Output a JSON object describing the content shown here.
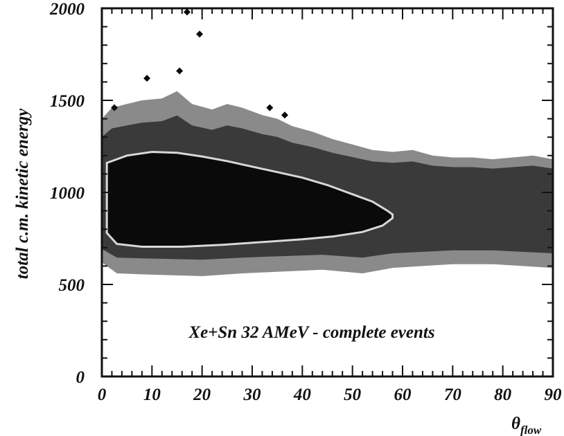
{
  "chart_data": {
    "type": "heatmap",
    "title": "",
    "xlabel_symbol": "θ",
    "xlabel_sub": "flow",
    "ylabel": "total c.m. kinetic energy",
    "annotation": "Xe+Sn 32 AMeV - complete events",
    "xlim": [
      0,
      90
    ],
    "ylim": [
      0,
      2000
    ],
    "x_ticks": [
      0,
      10,
      20,
      30,
      40,
      50,
      60,
      70,
      80,
      90
    ],
    "y_ticks": [
      0,
      500,
      1000,
      1500,
      2000
    ],
    "grid": false,
    "colors": {
      "dense": "#0a0a0a",
      "mid": "#3a3a3a",
      "light": "#8a8a8a",
      "contour": "#d8d8d8"
    },
    "outer_region_top": [
      [
        0,
        1400
      ],
      [
        2,
        1460
      ],
      [
        5,
        1480
      ],
      [
        8,
        1500
      ],
      [
        12,
        1510
      ],
      [
        15,
        1550
      ],
      [
        18,
        1480
      ],
      [
        22,
        1450
      ],
      [
        25,
        1480
      ],
      [
        28,
        1460
      ],
      [
        32,
        1420
      ],
      [
        35,
        1400
      ],
      [
        38,
        1360
      ],
      [
        42,
        1330
      ],
      [
        46,
        1290
      ],
      [
        50,
        1260
      ],
      [
        54,
        1230
      ],
      [
        58,
        1220
      ],
      [
        62,
        1230
      ],
      [
        66,
        1200
      ],
      [
        70,
        1190
      ],
      [
        74,
        1190
      ],
      [
        78,
        1180
      ],
      [
        82,
        1190
      ],
      [
        86,
        1200
      ],
      [
        90,
        1180
      ]
    ],
    "outer_region_bottom": [
      [
        0,
        620
      ],
      [
        3,
        560
      ],
      [
        8,
        555
      ],
      [
        14,
        550
      ],
      [
        20,
        545
      ],
      [
        28,
        560
      ],
      [
        36,
        570
      ],
      [
        44,
        580
      ],
      [
        52,
        560
      ],
      [
        58,
        590
      ],
      [
        64,
        600
      ],
      [
        70,
        610
      ],
      [
        78,
        610
      ],
      [
        84,
        600
      ],
      [
        90,
        590
      ]
    ],
    "dense_region_top": [
      [
        1,
        1160
      ],
      [
        5,
        1200
      ],
      [
        10,
        1220
      ],
      [
        15,
        1215
      ],
      [
        20,
        1195
      ],
      [
        25,
        1170
      ],
      [
        30,
        1140
      ],
      [
        35,
        1110
      ],
      [
        40,
        1080
      ],
      [
        45,
        1040
      ],
      [
        50,
        990
      ],
      [
        54,
        950
      ],
      [
        57,
        900
      ],
      [
        58,
        880
      ]
    ],
    "dense_region_bottom": [
      [
        58,
        860
      ],
      [
        56,
        820
      ],
      [
        52,
        785
      ],
      [
        46,
        760
      ],
      [
        40,
        745
      ],
      [
        32,
        730
      ],
      [
        24,
        715
      ],
      [
        16,
        705
      ],
      [
        8,
        705
      ],
      [
        3,
        720
      ],
      [
        1,
        780
      ]
    ],
    "isolated_points": [
      {
        "x": 17,
        "y": 1980
      },
      {
        "x": 19.5,
        "y": 1860
      },
      {
        "x": 9,
        "y": 1620
      },
      {
        "x": 15.5,
        "y": 1660
      },
      {
        "x": 2.5,
        "y": 1460
      },
      {
        "x": 33.5,
        "y": 1460
      },
      {
        "x": 36.5,
        "y": 1420
      }
    ]
  }
}
